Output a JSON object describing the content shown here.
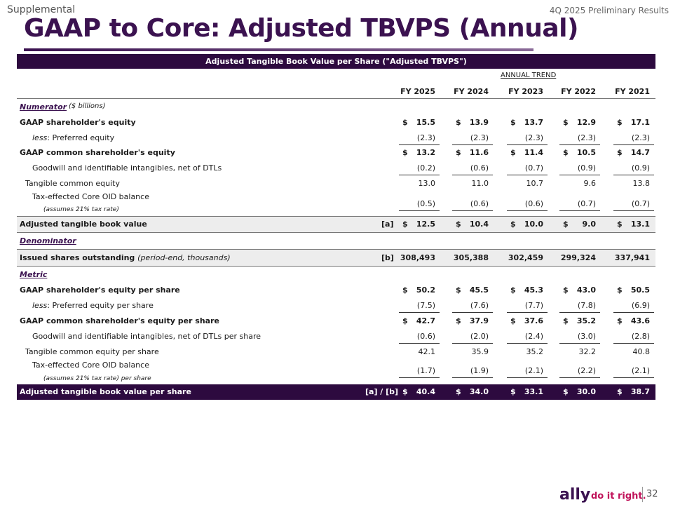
{
  "header": {
    "supplemental": "Supplemental",
    "preliminary": "4Q 2025 Preliminary Results",
    "title": "GAAP to Core: Adjusted TBVPS (Annual)",
    "banner": "Adjusted Tangible Book Value per Share (\"Adjusted TBVPS\")"
  },
  "table": {
    "annual_trend": "ANNUAL TREND",
    "columns": [
      "FY 2025",
      "FY 2024",
      "FY 2023",
      "FY 2022",
      "FY 2021"
    ],
    "numerator_label": "Numerator",
    "numerator_unit": "($ billions)",
    "denominator_label": "Denominator",
    "metric_label": "Metric",
    "rows": {
      "gaap_equity": {
        "label": "GAAP shareholder's equity",
        "values": [
          "15.5",
          "13.9",
          "13.7",
          "12.9",
          "17.1"
        ]
      },
      "preferred": {
        "prefix": "less",
        "label": ":  Preferred equity",
        "values": [
          "(2.3)",
          "(2.3)",
          "(2.3)",
          "(2.3)",
          "(2.3)"
        ]
      },
      "gaap_common": {
        "label": "GAAP common shareholder's equity",
        "values": [
          "13.2",
          "11.6",
          "11.4",
          "10.5",
          "14.7"
        ]
      },
      "goodwill": {
        "label": "Goodwill and identifiable intangibles, net of DTLs",
        "values": [
          "(0.2)",
          "(0.6)",
          "(0.7)",
          "(0.9)",
          "(0.9)"
        ]
      },
      "tangible": {
        "label": "Tangible common equity",
        "values": [
          "13.0",
          "11.0",
          "10.7",
          "9.6",
          "13.8"
        ]
      },
      "oid": {
        "label": "Tax-effected Core OID balance",
        "note": "(assumes 21% tax rate)",
        "values": [
          "(0.5)",
          "(0.6)",
          "(0.6)",
          "(0.7)",
          "(0.7)"
        ]
      },
      "adj_tbv": {
        "label": "Adjusted tangible book value",
        "ref": "[a]",
        "values": [
          "12.5",
          "10.4",
          "10.0",
          "9.0",
          "13.1"
        ]
      },
      "shares": {
        "label": "Issued shares outstanding",
        "label_note": "(period-end, thousands)",
        "ref": "[b]",
        "values": [
          "308,493",
          "305,388",
          "302,459",
          "299,324",
          "337,941"
        ]
      },
      "ps_gaap_equity": {
        "label": "GAAP shareholder's equity per share",
        "values": [
          "50.2",
          "45.5",
          "45.3",
          "43.0",
          "50.5"
        ]
      },
      "ps_preferred": {
        "prefix": "less",
        "label": ":  Preferred equity per share",
        "values": [
          "(7.5)",
          "(7.6)",
          "(7.7)",
          "(7.8)",
          "(6.9)"
        ]
      },
      "ps_gaap_common": {
        "label": "GAAP common shareholder's equity per share",
        "values": [
          "42.7",
          "37.9",
          "37.6",
          "35.2",
          "43.6"
        ]
      },
      "ps_goodwill": {
        "label": "Goodwill and identifiable intangibles, net of DTLs per share",
        "values": [
          "(0.6)",
          "(2.0)",
          "(2.4)",
          "(3.0)",
          "(2.8)"
        ]
      },
      "ps_tangible": {
        "label": "Tangible common equity per share",
        "values": [
          "42.1",
          "35.9",
          "35.2",
          "32.2",
          "40.8"
        ]
      },
      "ps_oid": {
        "label": "Tax-effected Core OID balance",
        "note": "(assumes 21% tax rate) per share",
        "values": [
          "(1.7)",
          "(1.9)",
          "(2.1)",
          "(2.2)",
          "(2.1)"
        ]
      },
      "ps_adj_tbv": {
        "label": "Adjusted tangible book value per share",
        "ref": "[a] / [b]",
        "values": [
          "40.4",
          "34.0",
          "33.1",
          "30.0",
          "38.7"
        ]
      }
    },
    "dollar_sign": "$"
  },
  "footer": {
    "logo": "ally",
    "tagline": "do it right.",
    "page": "32"
  }
}
